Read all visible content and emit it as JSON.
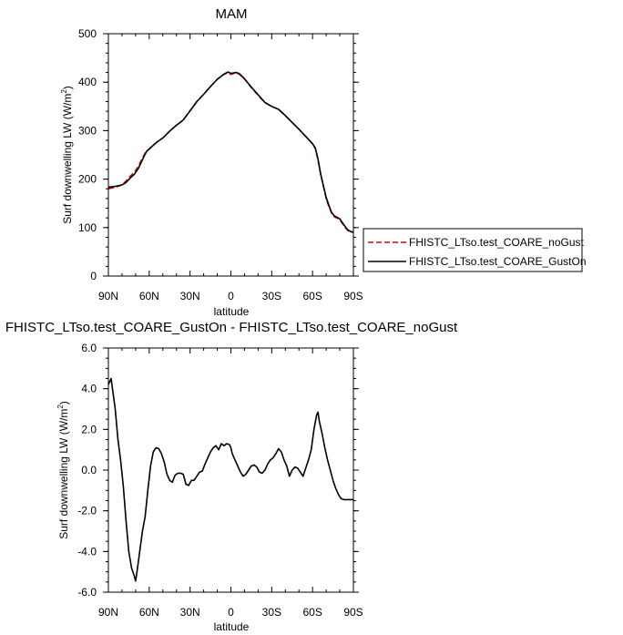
{
  "chart_data": [
    {
      "type": "line",
      "title": "MAM",
      "xlabel": "latitude",
      "ylabel": "Surf downwelling LW (W/m",
      "ylabel_sup": "2",
      "ylabel_close": ")",
      "xlim": [
        90,
        -90
      ],
      "ylim": [
        0,
        500
      ],
      "x_ticks": [
        90,
        60,
        30,
        0,
        -30,
        -60,
        -90
      ],
      "x_tick_labels": [
        "90N",
        "60N",
        "30N",
        "0",
        "30S",
        "60S",
        "90S"
      ],
      "y_ticks": [
        0,
        100,
        200,
        300,
        400,
        500
      ],
      "y_tick_labels": [
        "0",
        "100",
        "200",
        "300",
        "400",
        "500"
      ],
      "legend_position": "right",
      "series": [
        {
          "name": "FHISTC_LTso.test_COARE_noGust",
          "color": "#e00000",
          "dash": true,
          "x": [
            90,
            85,
            80,
            77,
            74,
            71,
            68,
            65,
            62,
            60,
            57,
            54,
            50,
            45,
            40,
            35,
            30,
            25,
            20,
            15,
            10,
            5,
            2,
            0,
            -2,
            -4,
            -6,
            -10,
            -15,
            -20,
            -25,
            -30,
            -35,
            -40,
            -45,
            -50,
            -55,
            -60,
            -62,
            -64,
            -66,
            -68,
            -70,
            -72,
            -74,
            -76,
            -78,
            -80,
            -82,
            -84,
            -86,
            -88,
            -90
          ],
          "y": [
            180,
            183,
            188,
            196,
            206,
            214,
            226,
            244,
            258,
            262,
            270,
            277,
            285,
            299,
            311,
            322,
            341,
            360,
            375,
            391,
            406,
            416,
            420,
            416,
            418,
            419,
            417,
            407,
            389,
            373,
            358,
            350,
            344,
            331,
            317,
            303,
            288,
            273,
            263,
            240,
            210,
            185,
            160,
            143,
            130,
            122,
            120,
            116,
            108,
            100,
            94,
            91,
            91
          ]
        },
        {
          "name": "FHISTC_LTso.test_COARE_GustOn",
          "color": "#000000",
          "dash": false,
          "x": [
            90,
            85,
            80,
            77,
            74,
            71,
            68,
            65,
            62,
            60,
            57,
            54,
            50,
            45,
            40,
            35,
            30,
            25,
            20,
            15,
            10,
            5,
            2,
            0,
            -2,
            -4,
            -6,
            -10,
            -15,
            -20,
            -25,
            -30,
            -35,
            -40,
            -45,
            -50,
            -55,
            -60,
            -62,
            -64,
            -66,
            -68,
            -70,
            -72,
            -74,
            -76,
            -78,
            -80,
            -82,
            -84,
            -86,
            -88,
            -90
          ],
          "y": [
            183,
            185,
            188,
            193,
            202,
            210,
            222,
            240,
            257,
            262,
            270,
            277,
            285,
            299,
            311,
            322,
            341,
            360,
            375,
            391,
            406,
            417,
            421,
            418,
            419,
            420,
            418,
            407,
            390,
            374,
            358,
            350,
            344,
            331,
            317,
            303,
            288,
            273,
            264,
            242,
            210,
            186,
            162,
            146,
            131,
            124,
            121,
            118,
            110,
            102,
            95,
            92,
            90
          ]
        }
      ]
    },
    {
      "type": "line",
      "title": "FHISTC_LTso.test_COARE_GustOn - FHISTC_LTso.test_COARE_noGust",
      "xlabel": "latitude",
      "ylabel": "Surf downwelling LW (W/m",
      "ylabel_sup": "2",
      "ylabel_close": ")",
      "xlim": [
        90,
        -90
      ],
      "ylim": [
        -6,
        6
      ],
      "x_ticks": [
        90,
        60,
        30,
        0,
        -30,
        -60,
        -90
      ],
      "x_tick_labels": [
        "90N",
        "60N",
        "30N",
        "0",
        "30S",
        "60S",
        "90S"
      ],
      "y_ticks": [
        -6,
        -4,
        -2,
        0,
        2,
        4,
        6
      ],
      "y_tick_labels": [
        "-6.0",
        "-4.0",
        "-2.0",
        "0.0",
        "2.0",
        "4.0",
        "6.0"
      ],
      "series": [
        {
          "color": "#000000",
          "dash": false,
          "x": [
            90,
            88,
            87,
            85,
            83,
            81,
            79,
            77,
            75,
            73,
            71,
            70,
            69,
            67,
            65,
            63,
            61,
            59,
            57,
            55,
            53,
            51,
            49,
            47,
            45,
            43,
            41,
            39,
            37,
            35,
            33,
            31,
            29,
            27,
            25,
            23,
            21,
            19,
            17,
            15,
            13,
            11,
            9,
            7,
            5,
            3,
            1,
            0,
            -1,
            -3,
            -5,
            -7,
            -9,
            -11,
            -13,
            -15,
            -17,
            -19,
            -21,
            -23,
            -25,
            -27,
            -29,
            -31,
            -33,
            -35,
            -37,
            -39,
            -41,
            -43,
            -45,
            -47,
            -49,
            -51,
            -53,
            -55,
            -57,
            -59,
            -61,
            -63,
            -64,
            -65,
            -67,
            -69,
            -71,
            -73,
            -75,
            -77,
            -79,
            -81,
            -83,
            -85,
            -87,
            -90
          ],
          "y": [
            4.2,
            4.5,
            4.0,
            3.0,
            1.5,
            0.5,
            -0.8,
            -2.5,
            -4.0,
            -4.8,
            -5.2,
            -5.45,
            -5.0,
            -4.0,
            -3.0,
            -2.3,
            -1.0,
            0.2,
            0.9,
            1.1,
            1.05,
            0.8,
            0.4,
            -0.2,
            -0.5,
            -0.6,
            -0.25,
            -0.15,
            -0.15,
            -0.2,
            -0.7,
            -0.75,
            -0.5,
            -0.5,
            -0.3,
            -0.1,
            -0.05,
            0.3,
            0.6,
            0.9,
            1.1,
            1.2,
            1.0,
            1.3,
            1.2,
            1.3,
            1.25,
            1.1,
            0.8,
            0.5,
            0.2,
            -0.1,
            -0.3,
            -0.2,
            0.0,
            0.2,
            0.25,
            0.15,
            -0.1,
            -0.15,
            0.0,
            0.3,
            0.5,
            0.6,
            0.8,
            1.05,
            0.9,
            0.5,
            0.2,
            -0.3,
            0.0,
            0.15,
            0.1,
            -0.1,
            -0.3,
            0.1,
            0.5,
            1.0,
            2.0,
            2.7,
            2.85,
            2.4,
            1.8,
            1.1,
            0.5,
            0.0,
            -0.5,
            -0.9,
            -1.2,
            -1.4,
            -1.45,
            -1.45,
            -1.45,
            -1.45
          ]
        }
      ]
    }
  ]
}
